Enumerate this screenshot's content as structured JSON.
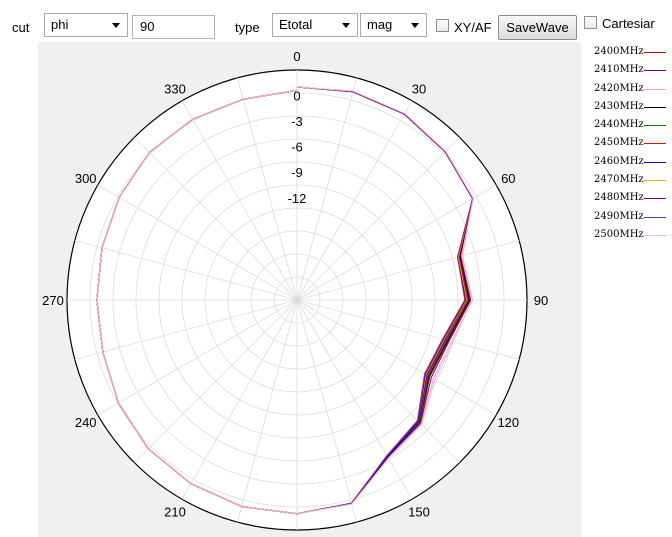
{
  "toolbar": {
    "cut_label": "cut",
    "cut_value": "phi",
    "angle_value": "90",
    "type_label": "type",
    "type_value": "Etotal",
    "mode_value": "mag",
    "xyaf_label": "XY/AF",
    "xyaf_checked": false,
    "savewave_label": "SaveWave",
    "cartesian_label": "Cartesiar",
    "cartesian_checked": false
  },
  "chart_data": {
    "type": "polar-line",
    "title": "",
    "angle_ticks": [
      "0",
      "30",
      "60",
      "90",
      "120",
      "150",
      "180",
      "210",
      "240",
      "270",
      "300",
      "330"
    ],
    "radial_ticks": [
      "0",
      "-3",
      "-6",
      "-9",
      "-12"
    ],
    "radial_range": [
      -24,
      3
    ],
    "angle_unit": "degrees",
    "angle_direction": "clockwise from top",
    "grid": true,
    "legend_position": "right",
    "series": [
      {
        "name": "2400MHz",
        "color": "#c00000",
        "values": [
          1.0,
          1.3,
          1.2,
          0.6,
          -0.2,
          -4.2,
          -3.7,
          -5.6,
          -6.0,
          -3.6,
          -2.7,
          0.7,
          1.1,
          1.1,
          0.9,
          0.7,
          0.2,
          -0.4,
          -0.5,
          -0.3,
          0.1,
          0.5,
          0.5,
          0.4,
          0.6
        ]
      },
      {
        "name": "2410MHz",
        "color": "#6a0090",
        "values": [
          1.0,
          1.3,
          1.2,
          0.6,
          -0.2,
          -4.1,
          -3.6,
          -5.5,
          -5.8,
          -3.5,
          -2.7,
          0.7,
          1.1,
          1.1,
          0.9,
          0.7,
          0.2,
          -0.4,
          -0.5,
          -0.3,
          0.1,
          0.5,
          0.5,
          0.4,
          0.6
        ]
      },
      {
        "name": "2420MHz",
        "color": "#ff99cc",
        "values": [
          1.0,
          1.4,
          1.2,
          0.6,
          -0.1,
          -3.9,
          -3.4,
          -5.2,
          -5.5,
          -3.4,
          -2.6,
          0.7,
          1.1,
          1.1,
          0.9,
          0.7,
          0.2,
          -0.4,
          -0.5,
          -0.3,
          0.1,
          0.5,
          0.5,
          0.4,
          0.6
        ]
      },
      {
        "name": "2430MHz",
        "color": "#000000",
        "values": [
          1.0,
          1.3,
          1.2,
          0.6,
          -0.2,
          -4.2,
          -3.8,
          -5.7,
          -6.1,
          -3.7,
          -2.7,
          0.7,
          1.1,
          1.1,
          0.9,
          0.7,
          0.2,
          -0.4,
          -0.5,
          -0.3,
          0.1,
          0.5,
          0.5,
          0.4,
          0.6
        ]
      },
      {
        "name": "2440MHz",
        "color": "#008000",
        "values": [
          1.0,
          1.3,
          1.2,
          0.6,
          -0.2,
          -4.3,
          -3.9,
          -5.8,
          -6.2,
          -3.7,
          -2.8,
          0.7,
          1.1,
          1.1,
          0.9,
          0.7,
          0.2,
          -0.4,
          -0.5,
          -0.3,
          0.1,
          0.5,
          0.5,
          0.4,
          0.6
        ]
      },
      {
        "name": "2450MHz",
        "color": "#ff0000",
        "values": [
          1.0,
          1.3,
          1.2,
          0.6,
          -0.2,
          -4.3,
          -4.0,
          -5.9,
          -6.3,
          -3.8,
          -2.8,
          0.7,
          1.1,
          1.1,
          0.9,
          0.7,
          0.2,
          -0.4,
          -0.5,
          -0.3,
          0.1,
          0.5,
          0.5,
          0.4,
          0.6
        ]
      },
      {
        "name": "2460MHz",
        "color": "#0000ff",
        "values": [
          1.0,
          1.3,
          1.2,
          0.6,
          -0.2,
          -4.4,
          -4.1,
          -6.0,
          -6.4,
          -3.8,
          -2.8,
          0.7,
          1.1,
          1.1,
          0.9,
          0.7,
          0.2,
          -0.4,
          -0.5,
          -0.3,
          0.1,
          0.5,
          0.5,
          0.4,
          0.6
        ]
      },
      {
        "name": "2470MHz",
        "color": "#ffa500",
        "values": [
          1.0,
          1.3,
          1.2,
          0.6,
          -0.2,
          -4.4,
          -4.1,
          -6.1,
          -6.5,
          -3.9,
          -2.9,
          0.7,
          1.1,
          1.1,
          0.9,
          0.7,
          0.2,
          -0.4,
          -0.5,
          -0.3,
          0.1,
          0.5,
          0.5,
          0.4,
          0.6
        ]
      },
      {
        "name": "2480MHz",
        "color": "#800040",
        "values": [
          1.0,
          1.3,
          1.2,
          0.6,
          -0.2,
          -4.5,
          -4.2,
          -6.2,
          -6.6,
          -3.9,
          -2.9,
          0.7,
          1.1,
          1.1,
          0.9,
          0.7,
          0.2,
          -0.4,
          -0.5,
          -0.3,
          0.1,
          0.5,
          0.5,
          0.4,
          0.6
        ]
      },
      {
        "name": "2490MHz",
        "color": "#7030a0",
        "values": [
          1.0,
          1.3,
          1.2,
          0.6,
          -0.2,
          -4.5,
          -4.3,
          -6.3,
          -6.7,
          -4.0,
          -2.9,
          0.7,
          1.1,
          1.1,
          0.9,
          0.7,
          0.2,
          -0.4,
          -0.5,
          -0.3,
          0.1,
          0.5,
          0.5,
          0.4,
          0.6
        ]
      },
      {
        "name": "2500MHz",
        "color": "#ffb6d9",
        "values": [
          1.0,
          1.4,
          1.3,
          0.7,
          -0.1,
          -4.0,
          -3.5,
          -5.0,
          -5.3,
          -3.3,
          -2.5,
          0.8,
          1.1,
          1.1,
          0.9,
          0.7,
          0.2,
          -0.4,
          -0.5,
          -0.3,
          0.1,
          0.5,
          0.5,
          0.4,
          0.6
        ]
      }
    ],
    "angles": [
      0,
      15,
      30,
      45,
      60,
      75,
      90,
      105,
      120,
      135,
      150,
      165,
      180,
      195,
      210,
      225,
      240,
      255,
      270,
      285,
      300,
      315,
      330,
      345,
      360
    ]
  }
}
